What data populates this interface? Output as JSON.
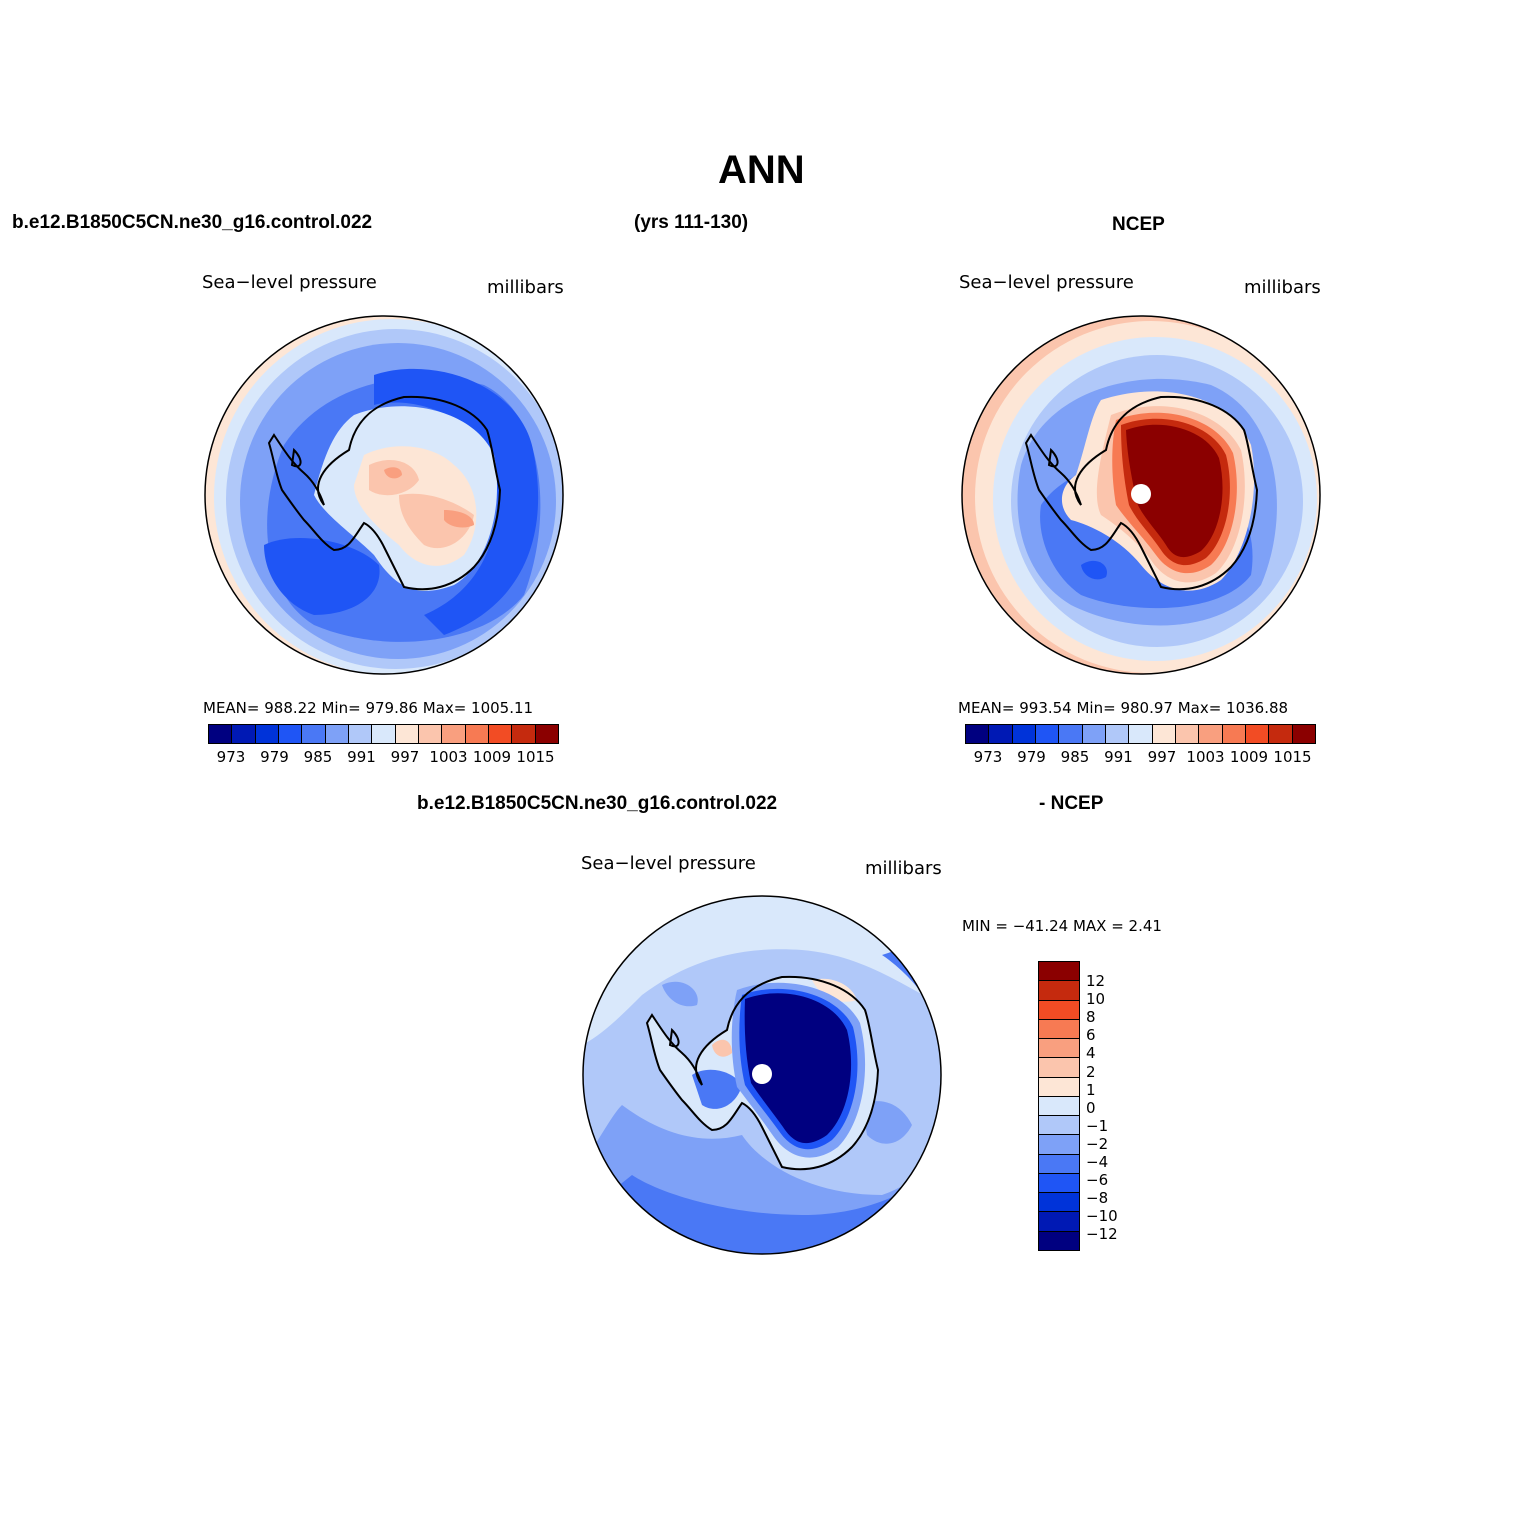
{
  "title": "ANN",
  "header": {
    "case_name": "b.e12.B1850C5CN.ne30_g16.control.022",
    "years": "(yrs 111-130)",
    "obs_name": "NCEP",
    "diff_case": "b.e12.B1850C5CN.ne30_g16.control.022",
    "diff_obs": "- NCEP"
  },
  "panels": [
    {
      "variable": "Sea−level pressure",
      "units": "millibars",
      "stats": "MEAN= 988.22   Min= 979.86   Max= 1005.11",
      "colorbar": {
        "colors": [
          "#000080",
          "#0019b4",
          "#0033d9",
          "#1f55f5",
          "#4a78f5",
          "#7ea1f7",
          "#b0c8f9",
          "#d9e8fb",
          "#fde6d6",
          "#fbc5ad",
          "#f99f7f",
          "#f77a53",
          "#f24c24",
          "#c52a0e",
          "#8b0000"
        ],
        "ticks": [
          "973",
          "979",
          "985",
          "991",
          "997",
          "1003",
          "1009",
          "1015"
        ]
      }
    },
    {
      "variable": "Sea−level pressure",
      "units": "millibars",
      "stats": "MEAN= 993.54   Min= 980.97   Max= 1036.88",
      "colorbar": {
        "colors": [
          "#000080",
          "#0019b4",
          "#0033d9",
          "#1f55f5",
          "#4a78f5",
          "#7ea1f7",
          "#b0c8f9",
          "#d9e8fb",
          "#fde6d6",
          "#fbc5ad",
          "#f99f7f",
          "#f77a53",
          "#f24c24",
          "#c52a0e",
          "#8b0000"
        ],
        "ticks": [
          "973",
          "979",
          "985",
          "991",
          "997",
          "1003",
          "1009",
          "1015"
        ]
      }
    },
    {
      "variable": "Sea−level pressure",
      "units": "millibars",
      "stats": "MIN = −41.24  MAX =    2.41",
      "colorbar": {
        "colors": [
          "#8b0000",
          "#c52a0e",
          "#f24c24",
          "#f77a53",
          "#f99f7f",
          "#fbc5ad",
          "#fde6d6",
          "#d9e8fb",
          "#b0c8f9",
          "#7ea1f7",
          "#4a78f5",
          "#1f55f5",
          "#0033d9",
          "#0019b4",
          "#000080"
        ],
        "ticks": [
          "12",
          "10",
          "8",
          "6",
          "4",
          "2",
          "1",
          "0",
          "−1",
          "−2",
          "−4",
          "−6",
          "−8",
          "−10",
          "−12"
        ]
      }
    }
  ]
}
